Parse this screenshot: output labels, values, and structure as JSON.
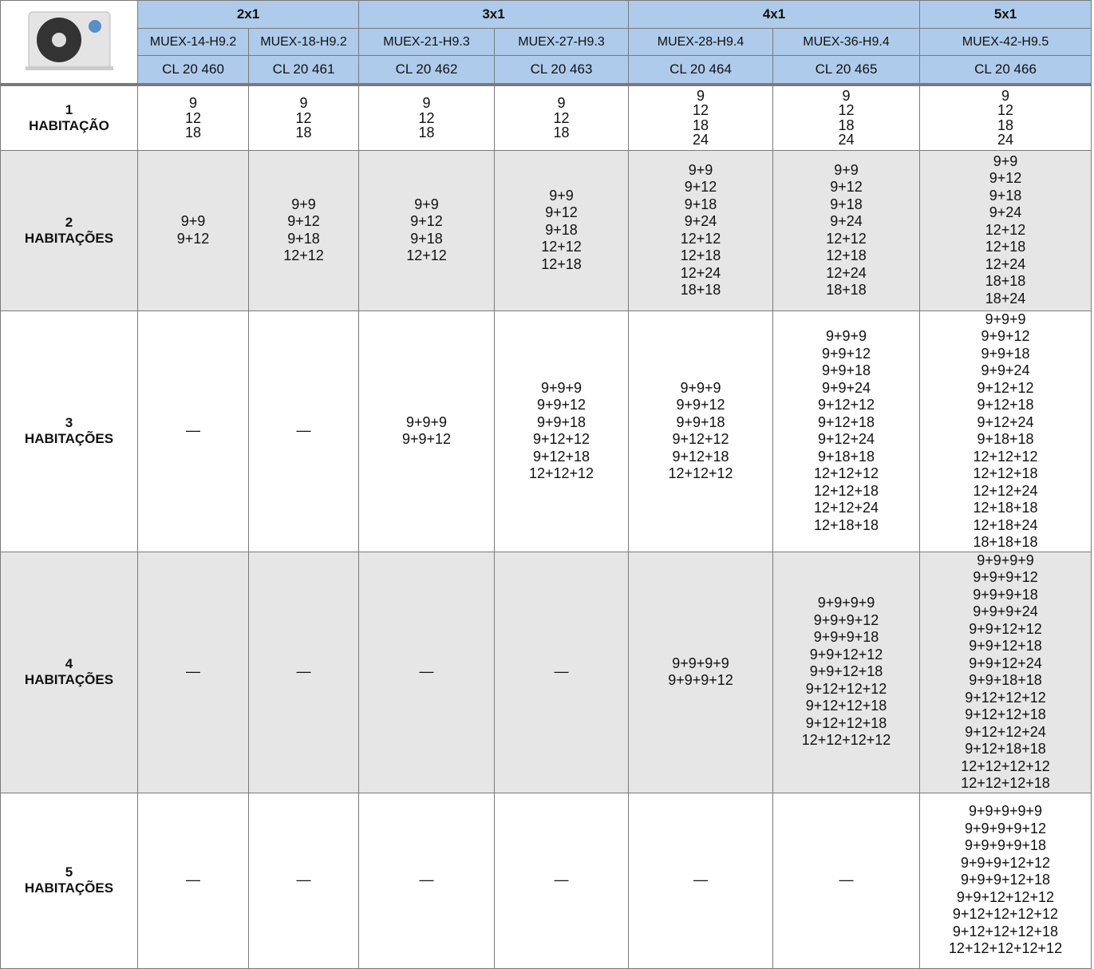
{
  "header": {
    "groups": [
      {
        "label": "2x1",
        "span": 2
      },
      {
        "label": "3x1",
        "span": 2
      },
      {
        "label": "4x1",
        "span": 2
      },
      {
        "label": "5x1",
        "span": 1
      }
    ],
    "models": [
      "MUEX-14-H9.2",
      "MUEX-18-H9.2",
      "MUEX-21-H9.3",
      "MUEX-27-H9.3",
      "MUEX-28-H9.4",
      "MUEX-36-H9.4",
      "MUEX-42-H9.5"
    ],
    "codes": [
      "CL 20 460",
      "CL 20 461",
      "CL 20 462",
      "CL 20 463",
      "CL 20 464",
      "CL 20 465",
      "CL 20 466"
    ]
  },
  "rows": [
    {
      "number": "1",
      "label": "HABITAÇÃO",
      "cells": [
        [
          "9",
          "12",
          "18"
        ],
        [
          "9",
          "12",
          "18"
        ],
        [
          "9",
          "12",
          "18"
        ],
        [
          "9",
          "12",
          "18"
        ],
        [
          "9",
          "12",
          "18",
          "24"
        ],
        [
          "9",
          "12",
          "18",
          "24"
        ],
        [
          "9",
          "12",
          "18",
          "24"
        ]
      ]
    },
    {
      "number": "2",
      "label": "HABITAÇÕES",
      "cells": [
        [
          "9+9",
          "9+12"
        ],
        [
          "9+9",
          "9+12",
          "9+18",
          "12+12"
        ],
        [
          "9+9",
          "9+12",
          "9+18",
          "12+12"
        ],
        [
          "9+9",
          "9+12",
          "9+18",
          "12+12",
          "12+18"
        ],
        [
          "9+9",
          "9+12",
          "9+18",
          "9+24",
          "12+12",
          "12+18",
          "12+24",
          "18+18"
        ],
        [
          "9+9",
          "9+12",
          "9+18",
          "9+24",
          "12+12",
          "12+18",
          "12+24",
          "18+18"
        ],
        [
          "9+9",
          "9+12",
          "9+18",
          "9+24",
          "12+12",
          "12+18",
          "12+24",
          "18+18",
          "18+24"
        ]
      ]
    },
    {
      "number": "3",
      "label": "HABITAÇÕES",
      "cells": [
        [
          "—"
        ],
        [
          "—"
        ],
        [
          "9+9+9",
          "9+9+12"
        ],
        [
          "9+9+9",
          "9+9+12",
          "9+9+18",
          "9+12+12",
          "9+12+18",
          "12+12+12"
        ],
        [
          "9+9+9",
          "9+9+12",
          "9+9+18",
          "9+12+12",
          "9+12+18",
          "12+12+12"
        ],
        [
          "9+9+9",
          "9+9+12",
          "9+9+18",
          "9+9+24",
          "9+12+12",
          "9+12+18",
          "9+12+24",
          "9+18+18",
          "12+12+12",
          "12+12+18",
          "12+12+24",
          "12+18+18"
        ],
        [
          "9+9+9",
          "9+9+12",
          "9+9+18",
          "9+9+24",
          "9+12+12",
          "9+12+18",
          "9+12+24",
          "9+18+18",
          "12+12+12",
          "12+12+18",
          "12+12+24",
          "12+18+18",
          "12+18+24",
          "18+18+18"
        ]
      ]
    },
    {
      "number": "4",
      "label": "HABITAÇÕES",
      "cells": [
        [
          "—"
        ],
        [
          "—"
        ],
        [
          "—"
        ],
        [
          "—"
        ],
        [
          "9+9+9+9",
          "9+9+9+12"
        ],
        [
          "9+9+9+9",
          "9+9+9+12",
          "9+9+9+18",
          "9+9+12+12",
          "9+9+12+18",
          "9+12+12+12",
          "9+12+12+18",
          "9+12+12+18",
          "12+12+12+12"
        ],
        [
          "9+9+9+9",
          "9+9+9+12",
          "9+9+9+18",
          "9+9+9+24",
          "9+9+12+12",
          "9+9+12+18",
          "9+9+12+24",
          "9+9+18+18",
          "9+12+12+12",
          "9+12+12+18",
          "9+12+12+24",
          "9+12+18+18",
          "12+12+12+12",
          "12+12+12+18"
        ]
      ]
    },
    {
      "number": "5",
      "label": "HABITAÇÕES",
      "cells": [
        [
          "—"
        ],
        [
          "—"
        ],
        [
          "—"
        ],
        [
          "—"
        ],
        [
          "—"
        ],
        [
          "—"
        ],
        [
          "9+9+9+9+9",
          "9+9+9+9+12",
          "9+9+9+9+18",
          "9+9+9+12+12",
          "9+9+9+12+18",
          "9+9+12+12+12",
          "9+12+12+12+12",
          "9+12+12+12+18",
          "12+12+12+12+12"
        ]
      ]
    }
  ]
}
